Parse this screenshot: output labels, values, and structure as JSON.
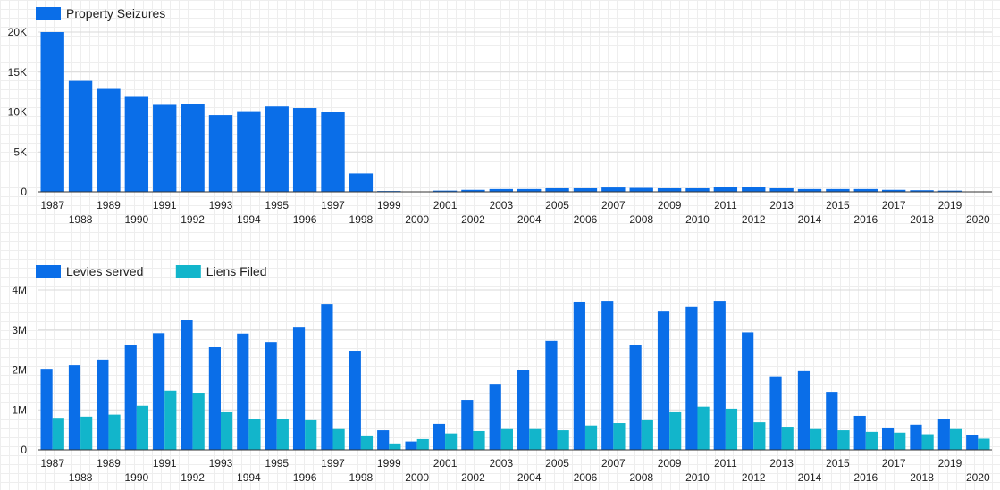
{
  "chart_data": [
    {
      "type": "bar",
      "categories": [
        "1987",
        "1988",
        "1989",
        "1990",
        "1991",
        "1992",
        "1993",
        "1994",
        "1995",
        "1996",
        "1997",
        "1998",
        "1999",
        "2000",
        "2001",
        "2002",
        "2003",
        "2004",
        "2005",
        "2006",
        "2007",
        "2008",
        "2009",
        "2010",
        "2011",
        "2012",
        "2013",
        "2014",
        "2015",
        "2016",
        "2017",
        "2018",
        "2019",
        "2020"
      ],
      "series": [
        {
          "name": "Property Seizures",
          "color": "#0a6ee8",
          "values": [
            20000,
            13900,
            12900,
            11900,
            10900,
            11000,
            9600,
            10100,
            10700,
            10500,
            10000,
            2300,
            100,
            0,
            150,
            250,
            350,
            350,
            450,
            450,
            550,
            500,
            450,
            450,
            650,
            650,
            450,
            350,
            350,
            350,
            250,
            200,
            150,
            0
          ]
        }
      ],
      "yticks": [
        0,
        5000,
        10000,
        15000,
        20000
      ],
      "ytick_labels": [
        "0",
        "5K",
        "10K",
        "15K",
        "20K"
      ],
      "ylim": [
        0,
        20000
      ],
      "legend": "top-left"
    },
    {
      "type": "bar",
      "categories": [
        "1987",
        "1988",
        "1989",
        "1990",
        "1991",
        "1992",
        "1993",
        "1994",
        "1995",
        "1996",
        "1997",
        "1998",
        "1999",
        "2000",
        "2001",
        "2002",
        "2003",
        "2004",
        "2005",
        "2006",
        "2007",
        "2008",
        "2009",
        "2010",
        "2011",
        "2012",
        "2013",
        "2014",
        "2015",
        "2016",
        "2017",
        "2018",
        "2019",
        "2020"
      ],
      "series": [
        {
          "name": "Levies served",
          "color": "#0a6ee8",
          "values": [
            2030000,
            2120000,
            2260000,
            2620000,
            2920000,
            3240000,
            2570000,
            2910000,
            2700000,
            3080000,
            3640000,
            2480000,
            490000,
            210000,
            650000,
            1250000,
            1650000,
            2010000,
            2730000,
            3710000,
            3730000,
            2620000,
            3460000,
            3580000,
            3730000,
            2940000,
            1840000,
            1970000,
            1450000,
            850000,
            560000,
            630000,
            760000,
            380000
          ]
        },
        {
          "name": "Liens Filed",
          "color": "#12b5cb",
          "values": [
            800000,
            830000,
            880000,
            1100000,
            1480000,
            1430000,
            940000,
            780000,
            780000,
            740000,
            520000,
            360000,
            160000,
            270000,
            410000,
            470000,
            520000,
            520000,
            490000,
            610000,
            670000,
            740000,
            940000,
            1080000,
            1030000,
            690000,
            580000,
            520000,
            490000,
            450000,
            430000,
            390000,
            520000,
            280000
          ]
        }
      ],
      "yticks": [
        0,
        1000000,
        2000000,
        3000000,
        4000000
      ],
      "ytick_labels": [
        "0",
        "1M",
        "2M",
        "3M",
        "4M"
      ],
      "ylim": [
        0,
        4000000
      ],
      "legend": "top-left"
    }
  ]
}
